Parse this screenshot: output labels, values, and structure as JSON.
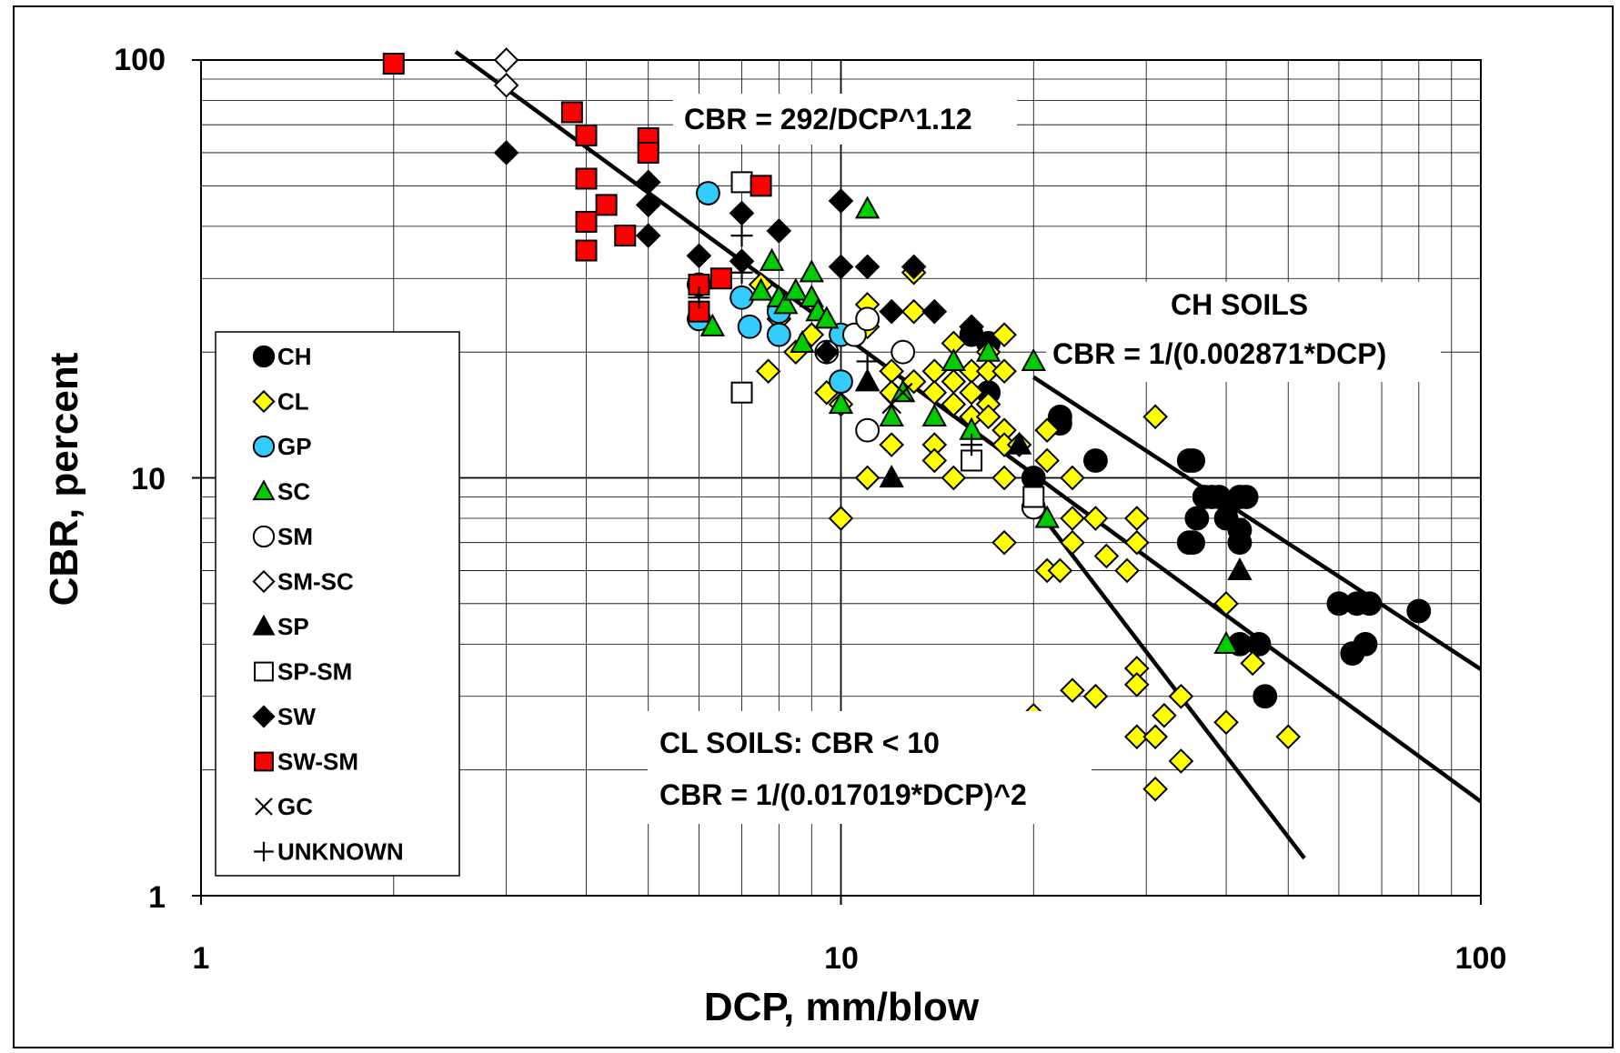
{
  "chart_data": {
    "type": "scatter",
    "title": "",
    "xlabel": "DCP, mm/blow",
    "ylabel": "CBR, percent",
    "xscale": "log",
    "yscale": "log",
    "xlim": [
      1,
      100
    ],
    "ylim": [
      1,
      100
    ],
    "x_tick_labels": [
      "1",
      "10",
      "100"
    ],
    "y_tick_labels": [
      "100",
      "10",
      "1"
    ],
    "grid": true,
    "legend_position": "left",
    "colors": {
      "CH": "#000000",
      "CL": "#ffff00",
      "GP": "#33ccff",
      "SC": "#00cc00",
      "SW-SM": "#ff0000"
    },
    "legend": [
      "CH",
      "CL",
      "GP",
      "SC",
      "SM",
      "SM-SC",
      "SP",
      "SP-SM",
      "SW",
      "SW-SM",
      "GC",
      "UNKNOWN"
    ],
    "series": [
      {
        "name": "CH",
        "marker": "circle",
        "fill": "#000000",
        "points": [
          [
            16,
            22
          ],
          [
            17,
            16
          ],
          [
            17,
            21
          ],
          [
            20,
            10
          ],
          [
            22,
            13.5
          ],
          [
            22,
            14
          ],
          [
            25,
            11
          ],
          [
            35,
            11
          ],
          [
            35.5,
            11
          ],
          [
            35,
            7
          ],
          [
            35.5,
            7
          ],
          [
            36,
            8
          ],
          [
            37,
            9
          ],
          [
            38,
            9
          ],
          [
            39,
            9
          ],
          [
            40,
            8
          ],
          [
            42,
            9
          ],
          [
            43,
            9
          ],
          [
            42,
            7
          ],
          [
            42,
            7.5
          ],
          [
            42,
            4
          ],
          [
            45,
            4
          ],
          [
            46,
            3
          ],
          [
            60,
            5
          ],
          [
            63,
            3.8
          ],
          [
            64,
            5
          ],
          [
            66,
            4
          ],
          [
            67,
            5
          ],
          [
            80,
            4.8
          ]
        ]
      },
      {
        "name": "CL",
        "marker": "diamond",
        "fill": "#ffff00",
        "points": [
          [
            7.5,
            29
          ],
          [
            7.7,
            18
          ],
          [
            8,
            24
          ],
          [
            8.5,
            20
          ],
          [
            9,
            22
          ],
          [
            9.5,
            16
          ],
          [
            10,
            15
          ],
          [
            10,
            8
          ],
          [
            11,
            26
          ],
          [
            11,
            23
          ],
          [
            11,
            10
          ],
          [
            12,
            18
          ],
          [
            12,
            12
          ],
          [
            12,
            16
          ],
          [
            13,
            17
          ],
          [
            13,
            25
          ],
          [
            13,
            31
          ],
          [
            14,
            18
          ],
          [
            14,
            16
          ],
          [
            14,
            12
          ],
          [
            14,
            11
          ],
          [
            15,
            21
          ],
          [
            15,
            17
          ],
          [
            15,
            15
          ],
          [
            15,
            10
          ],
          [
            16,
            18
          ],
          [
            16,
            14
          ],
          [
            16,
            16
          ],
          [
            17,
            20
          ],
          [
            17,
            18
          ],
          [
            17,
            15
          ],
          [
            17,
            14
          ],
          [
            18,
            22
          ],
          [
            18,
            18
          ],
          [
            18,
            13
          ],
          [
            18,
            12
          ],
          [
            18,
            10
          ],
          [
            18,
            7
          ],
          [
            19,
            12
          ],
          [
            21,
            11
          ],
          [
            21,
            13
          ],
          [
            21,
            6
          ],
          [
            22,
            6
          ],
          [
            23,
            10
          ],
          [
            23,
            8
          ],
          [
            23,
            7
          ],
          [
            23,
            3.1
          ],
          [
            25,
            8
          ],
          [
            25,
            3
          ],
          [
            26,
            6.5
          ],
          [
            28,
            6
          ],
          [
            29,
            8
          ],
          [
            29,
            7
          ],
          [
            29,
            3.5
          ],
          [
            29,
            3.2
          ],
          [
            29,
            2.4
          ],
          [
            31,
            2.4
          ],
          [
            31,
            14
          ],
          [
            31,
            1.8
          ],
          [
            32,
            2.7
          ],
          [
            34,
            2.1
          ],
          [
            34,
            3
          ],
          [
            40,
            5
          ],
          [
            40,
            2.6
          ],
          [
            44,
            3.6
          ],
          [
            50,
            2.4
          ],
          [
            20,
            2.7
          ]
        ]
      },
      {
        "name": "GP",
        "marker": "circle",
        "fill": "#33ccff",
        "points": [
          [
            6,
            24
          ],
          [
            6.2,
            48
          ],
          [
            6,
            29
          ],
          [
            7,
            27
          ],
          [
            7.2,
            23
          ],
          [
            8,
            25
          ],
          [
            8,
            22
          ],
          [
            10,
            22
          ],
          [
            10,
            17
          ]
        ]
      },
      {
        "name": "SC",
        "marker": "triangle",
        "fill": "#00cc00",
        "points": [
          [
            6.3,
            23
          ],
          [
            7.5,
            28
          ],
          [
            7.8,
            33
          ],
          [
            8,
            27
          ],
          [
            8.2,
            26
          ],
          [
            8.5,
            28
          ],
          [
            8.7,
            21
          ],
          [
            9,
            31
          ],
          [
            9,
            27
          ],
          [
            9.2,
            25
          ],
          [
            9.5,
            24
          ],
          [
            10,
            15
          ],
          [
            11,
            17
          ],
          [
            11,
            44
          ],
          [
            12,
            14
          ],
          [
            12.5,
            16
          ],
          [
            14,
            14
          ],
          [
            15,
            19
          ],
          [
            16,
            13
          ],
          [
            17,
            20
          ],
          [
            20,
            19
          ],
          [
            21,
            8
          ],
          [
            40,
            4
          ]
        ]
      },
      {
        "name": "SM",
        "marker": "circle",
        "fill": "#ffffff",
        "points": [
          [
            9.5,
            20
          ],
          [
            10.5,
            22
          ],
          [
            11,
            24
          ],
          [
            11,
            13
          ],
          [
            12.5,
            20
          ],
          [
            20,
            8.5
          ]
        ]
      },
      {
        "name": "SM-SC",
        "marker": "diamond",
        "fill": "#ffffff",
        "points": [
          [
            3,
            100
          ],
          [
            3,
            87
          ]
        ]
      },
      {
        "name": "SP",
        "marker": "triangle",
        "fill": "#000000",
        "points": [
          [
            11,
            17
          ],
          [
            12,
            10
          ],
          [
            19,
            12
          ],
          [
            42,
            6
          ]
        ]
      },
      {
        "name": "SP-SM",
        "marker": "square",
        "fill": "#ffffff",
        "points": [
          [
            7,
            51
          ],
          [
            7,
            16
          ],
          [
            16,
            11
          ],
          [
            20,
            9
          ]
        ]
      },
      {
        "name": "SW",
        "marker": "diamond",
        "fill": "#000000",
        "points": [
          [
            3,
            60
          ],
          [
            5,
            51
          ],
          [
            5,
            45
          ],
          [
            5,
            38
          ],
          [
            6,
            34
          ],
          [
            7,
            43
          ],
          [
            7,
            33
          ],
          [
            8,
            39
          ],
          [
            9.5,
            20
          ],
          [
            10,
            46
          ],
          [
            10,
            32
          ],
          [
            11,
            32
          ],
          [
            12,
            25
          ],
          [
            13,
            32
          ],
          [
            14,
            25
          ],
          [
            16,
            23
          ]
        ]
      },
      {
        "name": "SW-SM",
        "marker": "square",
        "fill": "#ff0000",
        "points": [
          [
            2,
            98
          ],
          [
            3.8,
            75
          ],
          [
            4,
            66
          ],
          [
            4,
            52
          ],
          [
            4,
            41
          ],
          [
            4,
            35
          ],
          [
            4.3,
            45
          ],
          [
            4.6,
            38
          ],
          [
            5,
            65
          ],
          [
            5,
            60
          ],
          [
            6,
            29
          ],
          [
            6,
            25
          ],
          [
            6.5,
            30
          ],
          [
            7.5,
            50
          ]
        ]
      },
      {
        "name": "GC",
        "marker": "x",
        "fill": "none",
        "points": [
          [
            12,
            15
          ],
          [
            12.5,
            16
          ]
        ]
      },
      {
        "name": "UNKNOWN",
        "marker": "plus",
        "fill": "none",
        "points": [
          [
            6,
            27
          ],
          [
            7,
            38
          ],
          [
            7,
            31
          ],
          [
            11,
            19
          ],
          [
            16,
            12
          ]
        ]
      }
    ],
    "fit_lines": [
      {
        "name": "CBR = 292/DCP^1.12",
        "x_range": [
          2.5,
          100
        ]
      },
      {
        "name": "CBR = 1/(0.002871*DCP)",
        "x_range": [
          20,
          100
        ]
      },
      {
        "name": "CBR = 1/(0.017019*DCP)^2",
        "x_range": [
          20,
          53
        ]
      }
    ],
    "annotations": {
      "eq_main": "CBR = 292/DCP^1.12",
      "ch_title": "CH SOILS",
      "ch_eq": "CBR = 1/(0.002871*DCP)",
      "cl_title": "CL SOILS: CBR < 10",
      "cl_eq": "CBR = 1/(0.017019*DCP)^2"
    }
  }
}
